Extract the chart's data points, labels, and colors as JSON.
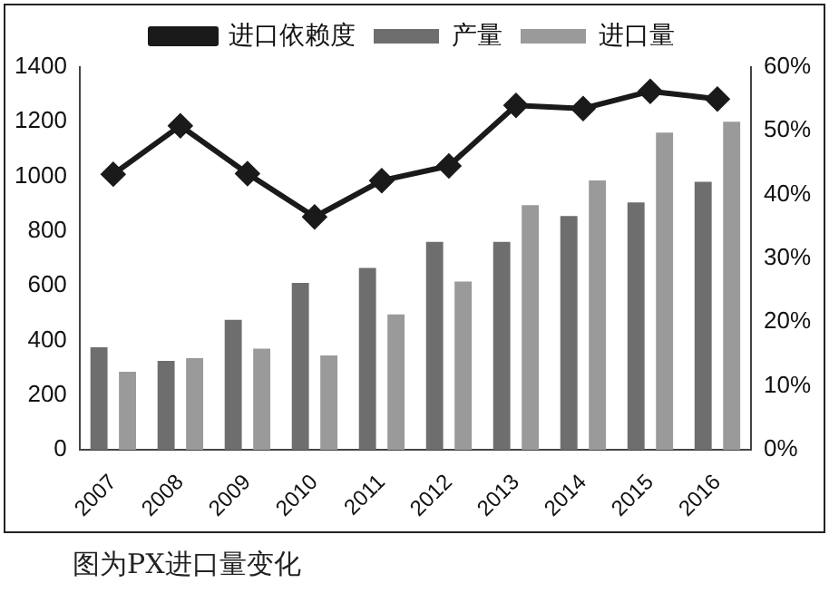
{
  "chart_data": {
    "type": "bar",
    "categories": [
      "2007",
      "2008",
      "2009",
      "2010",
      "2011",
      "2012",
      "2013",
      "2014",
      "2015",
      "2016"
    ],
    "series": [
      {
        "name": "产量",
        "color": "#6e6e6e",
        "values": [
          375,
          325,
          475,
          610,
          665,
          760,
          760,
          855,
          905,
          980
        ]
      },
      {
        "name": "进口量",
        "color": "#9a9a9a",
        "values": [
          285,
          335,
          370,
          345,
          495,
          615,
          895,
          985,
          1160,
          1200
        ]
      },
      {
        "name": "进口依赖度",
        "color": "#1a1a1a",
        "type": "line",
        "axis": "y2",
        "marker": "diamond",
        "values": [
          43.2,
          50.8,
          43.3,
          36.5,
          42.2,
          44.5,
          54,
          53.5,
          56.2,
          55
        ]
      }
    ],
    "ylim": [
      0,
      1400
    ],
    "yticks": [
      0,
      200,
      400,
      600,
      800,
      1000,
      1200,
      1400
    ],
    "y2lim": [
      0,
      60
    ],
    "y2ticks": [
      {
        "value": 0,
        "label": "0%"
      },
      {
        "value": 10,
        "label": "10%"
      },
      {
        "value": 20,
        "label": "20%"
      },
      {
        "value": 30,
        "label": "30%"
      },
      {
        "value": 40,
        "label": "40%"
      },
      {
        "value": 50,
        "label": "50%"
      },
      {
        "value": 60,
        "label": "60%"
      }
    ],
    "legend": "top",
    "grid": false,
    "annotations": [
      "图为PX进口量变化"
    ]
  }
}
